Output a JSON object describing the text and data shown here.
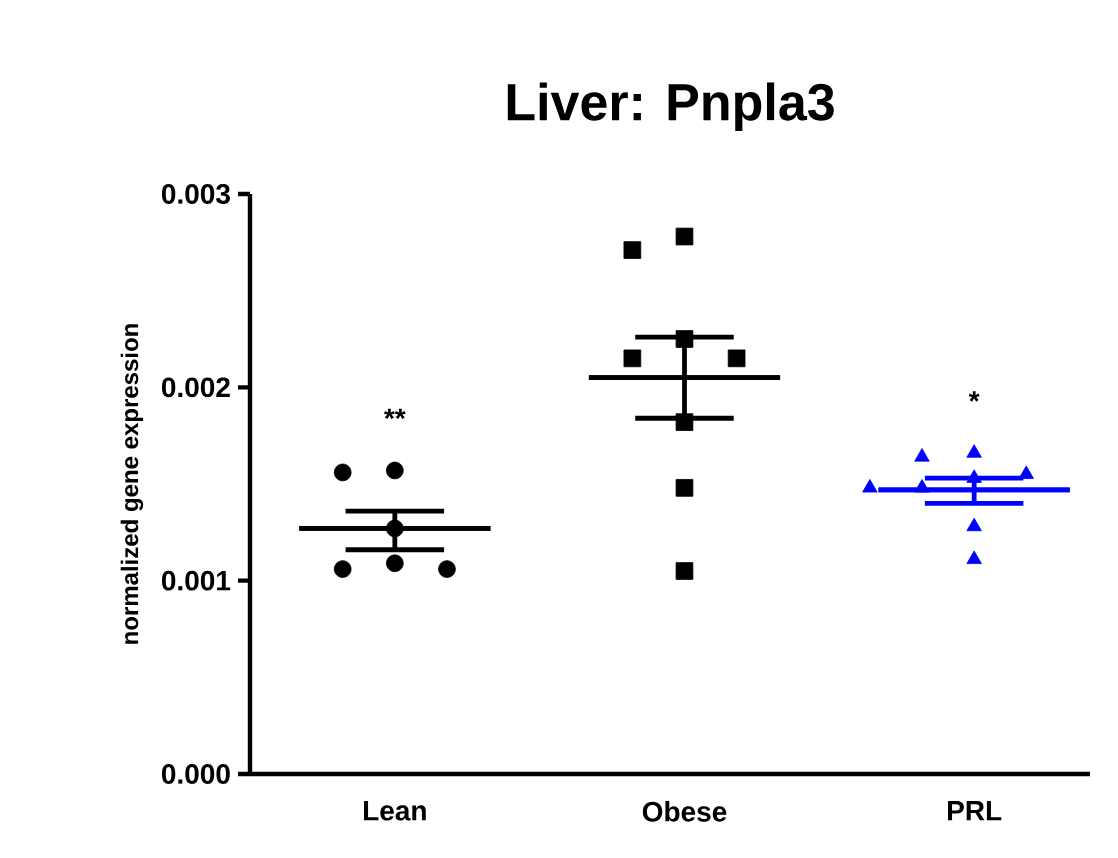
{
  "chart_data": {
    "type": "scatter",
    "title": "Liver: Pnpla3",
    "ylabel": "normalized gene expression",
    "categories": [
      "Lean",
      "Obese",
      "PRL"
    ],
    "ylim": [
      0,
      0.003
    ],
    "yticks": [
      {
        "value": 0,
        "label": "0.000"
      },
      {
        "value": 0.001,
        "label": "0.001"
      },
      {
        "value": 0.002,
        "label": "0.002"
      },
      {
        "value": 0.003,
        "label": "0.003"
      }
    ],
    "grid": false,
    "series": [
      {
        "marker": "circle",
        "color": "#000000",
        "x": [
          "Lean",
          "Lean",
          "Lean",
          "Lean",
          "Lean",
          "Lean"
        ],
        "values": [
          0.00157,
          0.00156,
          0.00127,
          0.00109,
          0.00106,
          0.00106
        ]
      },
      {
        "marker": "square",
        "color": "#000000",
        "x": [
          "Obese",
          "Obese",
          "Obese",
          "Obese",
          "Obese",
          "Obese",
          "Obese",
          "Obese"
        ],
        "values": [
          0.00278,
          0.00271,
          0.00225,
          0.00215,
          0.00215,
          0.00182,
          0.00148,
          0.00105
        ]
      },
      {
        "marker": "triangle",
        "color": "#0000ff",
        "x": [
          "PRL",
          "PRL",
          "PRL",
          "PRL",
          "PRL",
          "PRL",
          "PRL",
          "PRL"
        ],
        "values": [
          0.00166,
          0.00164,
          0.00155,
          0.00153,
          0.00148,
          0.00148,
          0.00128,
          0.00111
        ]
      },
      {
        "type": "box",
        "colors": [
          "#000000",
          "#000000",
          "#0000ff"
        ],
        "boxes": [
          {
            "low": 0.00116,
            "q1": 0.00127,
            "median": 0.00127,
            "q3": 0.00127,
            "high": 0.00136
          },
          {
            "low": 0.00184,
            "q1": 0.00205,
            "median": 0.00205,
            "q3": 0.00205,
            "high": 0.00226
          },
          {
            "low": 0.0014,
            "q1": 0.00147,
            "median": 0.00147,
            "q3": 0.00147,
            "high": 0.00153
          }
        ]
      }
    ],
    "annotations": [
      "**",
      "*"
    ]
  }
}
